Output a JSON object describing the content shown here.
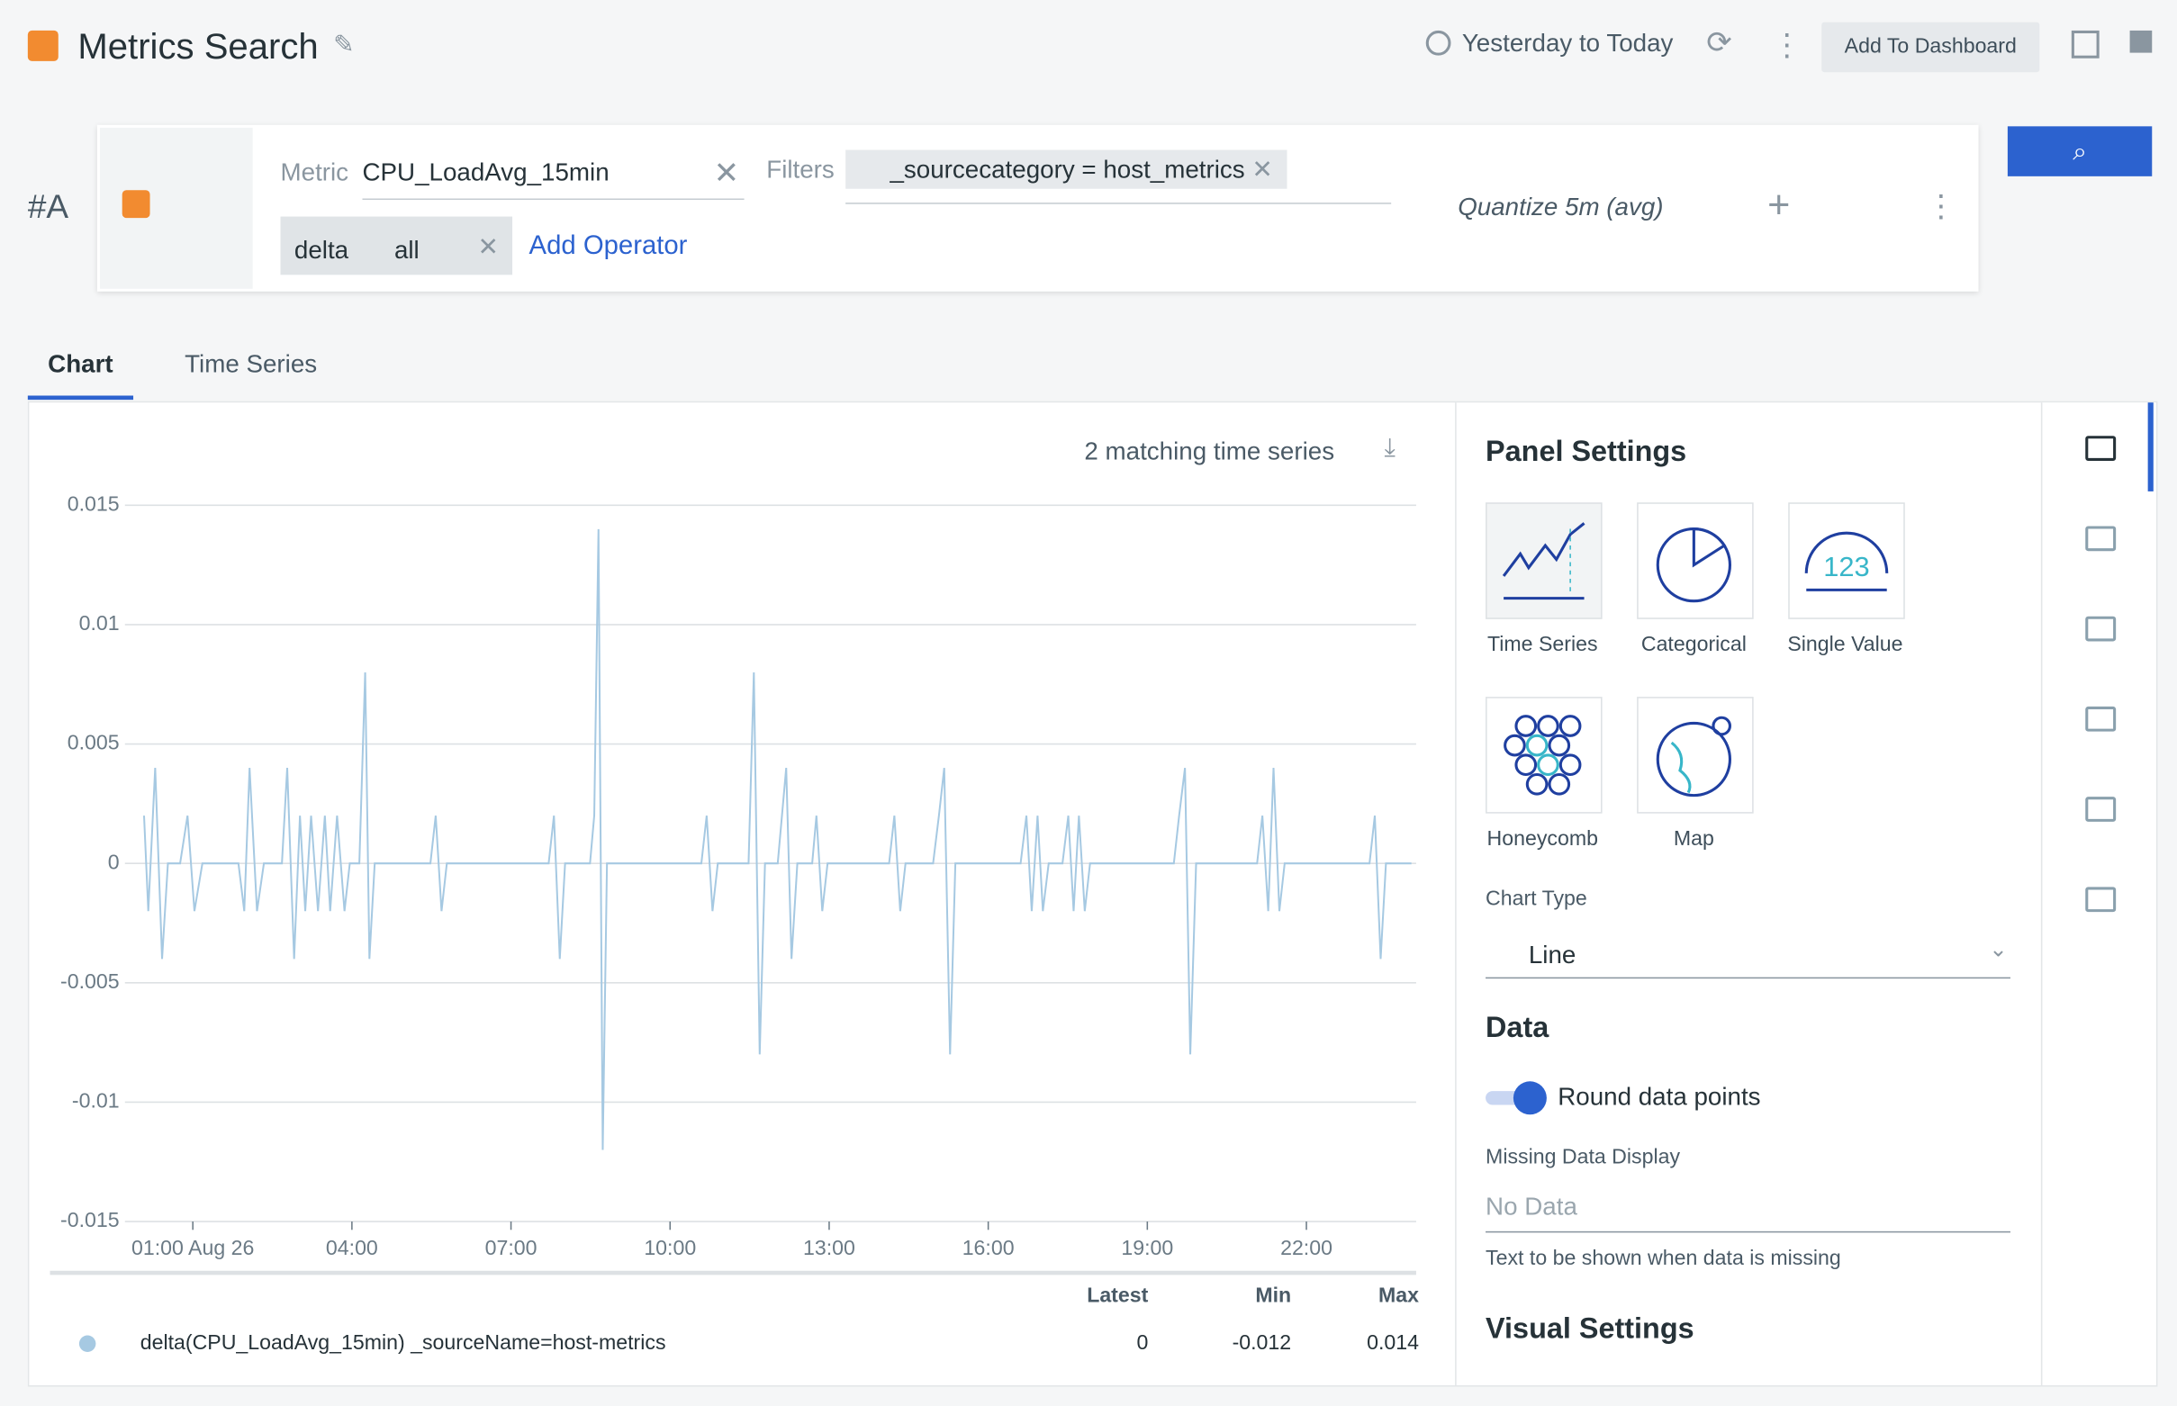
{
  "header": {
    "title": "Metrics Search",
    "time_range": "Yesterday to Today",
    "add_button": "Add To Dashboard"
  },
  "query": {
    "label": "#A",
    "metric_label": "Metric",
    "metric": "CPU_LoadAvg_15min",
    "filters_label": "Filters",
    "filter": "_sourcecategory = host_metrics",
    "operators": [
      "delta",
      "all"
    ],
    "add_operator": "Add Operator",
    "quantize": "Quantize 5m (avg)"
  },
  "tabs": [
    "Chart",
    "Time Series"
  ],
  "chart_panel": {
    "matching": "2 matching time series"
  },
  "chart_data": {
    "type": "line",
    "x": [
      0.08,
      0.16,
      0.29,
      0.42,
      0.53,
      0.76,
      0.9,
      1.03,
      1.18,
      1.86,
      1.97,
      2.07,
      2.21,
      2.34,
      2.68,
      2.78,
      2.91,
      3.02,
      3.12,
      3.23,
      3.36,
      3.49,
      3.59,
      3.72,
      3.86,
      3.96,
      4.14,
      4.25,
      4.33,
      4.43,
      5.48,
      5.58,
      5.69,
      5.79,
      7.71,
      7.81,
      7.92,
      8.02,
      8.49,
      8.57,
      8.65,
      8.73,
      8.81,
      10.59,
      10.69,
      10.8,
      10.9,
      11.48,
      11.58,
      11.69,
      11.79,
      12.03,
      12.11,
      12.19,
      12.29,
      12.4,
      12.68,
      12.76,
      12.87,
      12.97,
      14.13,
      14.23,
      14.34,
      14.44,
      14.96,
      15.07,
      15.17,
      15.28,
      15.38,
      16.61,
      16.72,
      16.82,
      16.93,
      17.03,
      17.14,
      17.4,
      17.51,
      17.61,
      17.71,
      17.82,
      17.92,
      19.5,
      19.6,
      19.71,
      19.81,
      19.92,
      21.07,
      21.17,
      21.28,
      21.38,
      21.49,
      21.59,
      23.19,
      23.29,
      23.4,
      23.5,
      23.98
    ],
    "series": [
      {
        "name": "delta(CPU_LoadAvg_15min) _sourceName=host-metrics",
        "color": "#a6c9e2",
        "values": [
          0.002,
          -0.002,
          0.004,
          -0.004,
          0,
          0,
          0.002,
          -0.002,
          0,
          0,
          -0.002,
          0.004,
          -0.002,
          0,
          0,
          0.004,
          -0.004,
          0.002,
          -0.002,
          0.002,
          -0.002,
          0.002,
          -0.002,
          0.002,
          -0.002,
          0,
          0,
          0.008,
          -0.004,
          0,
          0,
          0.002,
          -0.002,
          0,
          0,
          0.002,
          -0.004,
          0,
          0,
          0.002,
          0.014,
          -0.012,
          0,
          0,
          0.002,
          -0.002,
          0,
          0,
          0.008,
          -0.008,
          0,
          0,
          0.002,
          0.004,
          -0.004,
          0,
          0,
          0.002,
          -0.002,
          0,
          0,
          0.002,
          -0.002,
          0,
          0,
          0.002,
          0.004,
          -0.008,
          0,
          0,
          0.002,
          -0.002,
          0.002,
          -0.002,
          0,
          0,
          0.002,
          -0.002,
          0.002,
          -0.002,
          0,
          0,
          0.002,
          0.004,
          -0.008,
          0,
          0,
          0.002,
          -0.002,
          0.004,
          -0.002,
          0,
          0,
          0.002,
          -0.004,
          0,
          0
        ]
      }
    ],
    "xlim": [
      -0.28,
      24.07
    ],
    "xticks": [
      {
        "value": 1,
        "label": "01:00 Aug 26"
      },
      {
        "value": 4,
        "label": "04:00"
      },
      {
        "value": 7,
        "label": "07:00"
      },
      {
        "value": 10,
        "label": "10:00"
      },
      {
        "value": 13,
        "label": "13:00"
      },
      {
        "value": 16,
        "label": "16:00"
      },
      {
        "value": 19,
        "label": "19:00"
      },
      {
        "value": 22,
        "label": "22:00"
      }
    ],
    "ylim": [
      -0.015,
      0.015
    ],
    "yticks": [
      0.015,
      0.01,
      0.005,
      0,
      -0.005,
      -0.01,
      -0.015
    ],
    "grid": true
  },
  "legend_table": {
    "headers": [
      "Latest",
      "Min",
      "Max"
    ],
    "rows": [
      [
        0,
        -0.012,
        0.014
      ]
    ]
  },
  "panel_settings": {
    "title": "Panel Settings",
    "panel_types": [
      "Time Series",
      "Categorical",
      "Single Value",
      "Honeycomb",
      "Map"
    ],
    "single_value_sample": "123",
    "chart_type_label": "Chart Type",
    "chart_type": "Line",
    "data_title": "Data",
    "round_label": "Round data points",
    "missing_label": "Missing Data Display",
    "missing_placeholder": "No Data",
    "missing_help": "Text to be shown when data is missing",
    "visual_title": "Visual Settings"
  }
}
